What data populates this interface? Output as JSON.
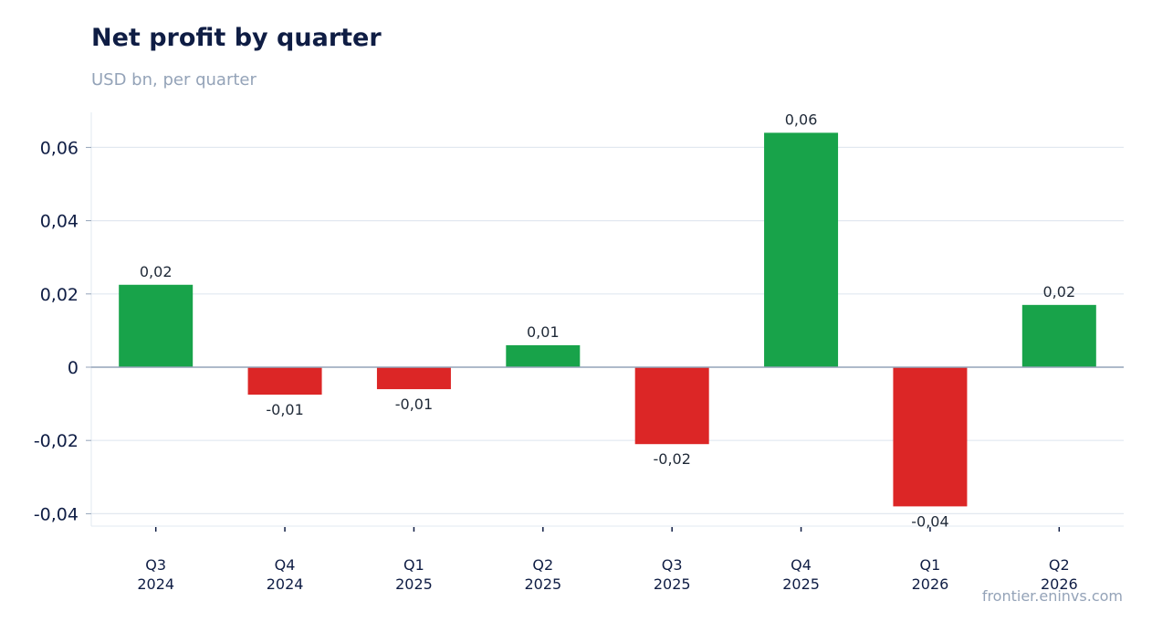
{
  "title": "Net profit by quarter",
  "subtitle": "USD bn, per quarter",
  "source": "frontier.eninvs.com",
  "colors": {
    "positive": "#18a34a",
    "negative": "#dc2626",
    "grid": "#e2e8f0",
    "zero_line": "#94a3b8"
  },
  "chart_data": {
    "type": "bar",
    "categories": [
      [
        "Q3",
        "2024"
      ],
      [
        "Q4",
        "2024"
      ],
      [
        "Q1",
        "2025"
      ],
      [
        "Q2",
        "2025"
      ],
      [
        "Q3",
        "2025"
      ],
      [
        "Q4",
        "2025"
      ],
      [
        "Q1",
        "2026"
      ],
      [
        "Q2",
        "2026"
      ]
    ],
    "values": [
      0.0225,
      -0.0075,
      -0.006,
      0.006,
      -0.021,
      0.064,
      -0.038,
      0.017
    ],
    "data_labels": [
      "0,02",
      "-0,01",
      "-0,01",
      "0,01",
      "-0,02",
      "0,06",
      "-0,04",
      "0,02"
    ],
    "yticks": [
      {
        "value": 0.06,
        "label": "0,06"
      },
      {
        "value": 0.04,
        "label": "0,04"
      },
      {
        "value": 0.02,
        "label": "0,02"
      },
      {
        "value": 0,
        "label": "0"
      },
      {
        "value": -0.02,
        "label": "-0,02"
      },
      {
        "value": -0.04,
        "label": "-0,04"
      }
    ],
    "ylim": [
      -0.043,
      0.07
    ],
    "grid": true
  }
}
